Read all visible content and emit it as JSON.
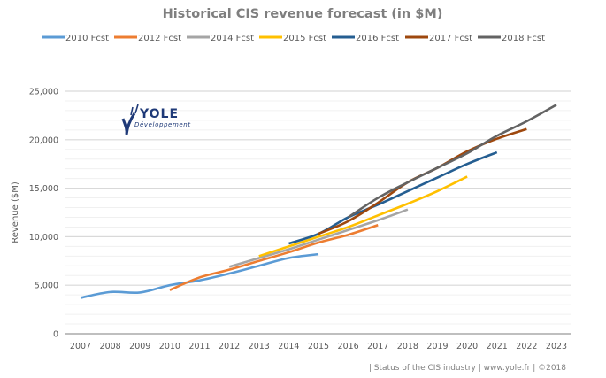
{
  "chart_data": {
    "type": "line",
    "title": "Historical CIS revenue forecast (in $M)",
    "xlabel": "",
    "ylabel": "Revenue ($M)",
    "x": [
      2007,
      2008,
      2009,
      2010,
      2011,
      2012,
      2013,
      2014,
      2015,
      2016,
      2017,
      2018,
      2019,
      2020,
      2021,
      2022,
      2023
    ],
    "x_tick_labels": [
      "2007",
      "2008",
      "2009",
      "2010",
      "2011",
      "2012",
      "2013",
      "2014",
      "2015",
      "2016",
      "2017",
      "2018",
      "2019",
      "2020",
      "2021",
      "2022",
      "2023"
    ],
    "ylim": [
      0,
      25000
    ],
    "y_ticks": [
      0,
      5000,
      10000,
      15000,
      20000,
      25000
    ],
    "y_tick_labels": [
      "0",
      "5,000",
      "10,000",
      "15,000",
      "20,000",
      "25,000"
    ],
    "grid": true,
    "legend_position": "top",
    "series": [
      {
        "name": "2010 Fcst",
        "color": "#5b9bd5",
        "x": [
          2007,
          2008,
          2009,
          2010,
          2011,
          2012,
          2013,
          2014,
          2015
        ],
        "values": [
          3700,
          4300,
          4250,
          5000,
          5500,
          6200,
          7000,
          7800,
          8200
        ]
      },
      {
        "name": "2012 Fcst",
        "color": "#ed7d31",
        "x": [
          2010,
          2011,
          2012,
          2013,
          2014,
          2015,
          2016,
          2017
        ],
        "values": [
          4500,
          5800,
          6600,
          7500,
          8400,
          9400,
          10200,
          11200
        ]
      },
      {
        "name": "2014 Fcst",
        "color": "#a5a5a5",
        "x": [
          2012,
          2013,
          2014,
          2015,
          2016,
          2017,
          2018
        ],
        "values": [
          6900,
          7800,
          8700,
          9700,
          10700,
          11700,
          12800
        ]
      },
      {
        "name": "2015 Fcst",
        "color": "#ffc000",
        "x": [
          2013,
          2014,
          2015,
          2016,
          2017,
          2018,
          2019,
          2020
        ],
        "values": [
          8000,
          9000,
          10000,
          11000,
          12200,
          13400,
          14700,
          16200
        ]
      },
      {
        "name": "2016 Fcst",
        "color": "#255e91",
        "x": [
          2014,
          2015,
          2016,
          2017,
          2018,
          2019,
          2020,
          2021
        ],
        "values": [
          9300,
          10300,
          12000,
          13300,
          14700,
          16100,
          17500,
          18700
        ]
      },
      {
        "name": "2017 Fcst",
        "color": "#9e480e",
        "x": [
          2015,
          2016,
          2017,
          2018,
          2019,
          2020,
          2021,
          2022
        ],
        "values": [
          10300,
          11600,
          13500,
          15600,
          17100,
          18800,
          20100,
          21100
        ]
      },
      {
        "name": "2018 Fcst",
        "color": "#636363",
        "x": [
          2016,
          2017,
          2018,
          2019,
          2020,
          2021,
          2022,
          2023
        ],
        "values": [
          12000,
          14000,
          15600,
          17100,
          18600,
          20400,
          21900,
          23600
        ]
      }
    ]
  },
  "logo": {
    "name": "YOLE",
    "subtitle": "Développement"
  },
  "footer": "| Status of the CIS industry | www.yole.fr | ©2018"
}
